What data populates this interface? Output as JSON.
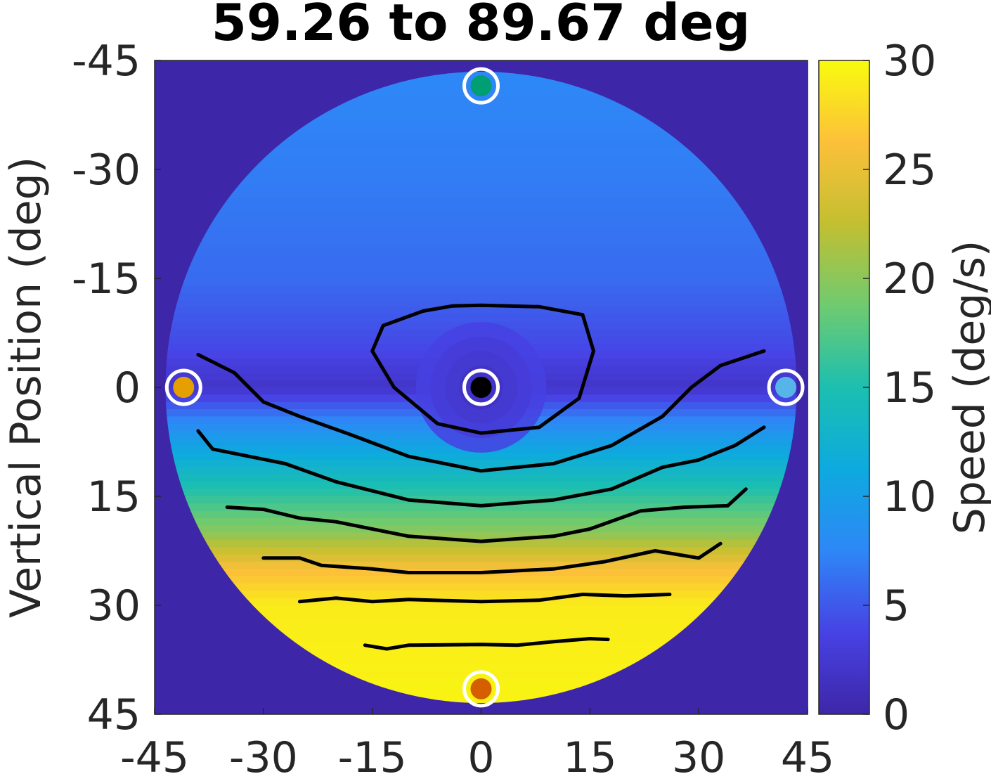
{
  "chart_data": {
    "type": "heatmap",
    "title": "59.26 to 89.67 deg",
    "xlabel": "",
    "ylabel": "Vertical Position (deg)",
    "colorbar_label": "Speed (deg/s)",
    "xlim": [
      -45,
      45
    ],
    "ylim": [
      45,
      -45
    ],
    "clim": [
      0,
      30
    ],
    "x_ticks": [
      "-45",
      "-30",
      "-15",
      "0",
      "15",
      "30",
      "45"
    ],
    "y_ticks": [
      "-45",
      "-30",
      "-15",
      "0",
      "15",
      "30",
      "45"
    ],
    "colorbar_ticks": [
      "0",
      "5",
      "10",
      "15",
      "20",
      "25",
      "30"
    ],
    "field_radius_deg": 43.5,
    "speed_field": {
      "vertical_deg": [
        -42,
        -30,
        -15,
        -5,
        0,
        5,
        10,
        15,
        20,
        25,
        30,
        42
      ],
      "speed_deg_s": [
        7.5,
        7.0,
        6.0,
        4.0,
        2.0,
        8.0,
        12.0,
        16.0,
        20.0,
        26.0,
        29.0,
        29.5
      ]
    },
    "contours": [
      {
        "level": 5,
        "points": [
          [
            -4,
            -11.2
          ],
          [
            0,
            -11.3
          ],
          [
            8,
            -11.1
          ],
          [
            14,
            -10
          ],
          [
            15.5,
            -5
          ],
          [
            13.5,
            1.5
          ],
          [
            8,
            5.5
          ],
          [
            0,
            6.3
          ],
          [
            -6,
            5
          ],
          [
            -12,
            0
          ],
          [
            -15,
            -5
          ],
          [
            -13.5,
            -8.5
          ],
          [
            -8,
            -10.5
          ],
          [
            -4,
            -11.2
          ]
        ]
      },
      {
        "level": 10,
        "points": [
          [
            -39,
            -4.5
          ],
          [
            -34,
            -2
          ],
          [
            -30,
            2
          ],
          [
            -25,
            4
          ],
          [
            -18,
            6.5
          ],
          [
            -10,
            9.5
          ],
          [
            0,
            11.5
          ],
          [
            10,
            10.5
          ],
          [
            18,
            8
          ],
          [
            25,
            4
          ],
          [
            29,
            0
          ],
          [
            33,
            -3
          ],
          [
            39,
            -5
          ]
        ]
      },
      {
        "level": 15,
        "points": [
          [
            -39,
            6
          ],
          [
            -37,
            8.5
          ],
          [
            -32,
            9.5
          ],
          [
            -27,
            10.5
          ],
          [
            -20,
            13
          ],
          [
            -10,
            15.5
          ],
          [
            0,
            16.3
          ],
          [
            10,
            15.5
          ],
          [
            18,
            14
          ],
          [
            25,
            11
          ],
          [
            30,
            10
          ],
          [
            35,
            8
          ],
          [
            39,
            5.5
          ]
        ]
      },
      {
        "level": 20,
        "points": [
          [
            -35,
            16.5
          ],
          [
            -30,
            16.8
          ],
          [
            -25,
            18
          ],
          [
            -20,
            18.5
          ],
          [
            -10,
            20.5
          ],
          [
            0,
            21.2
          ],
          [
            10,
            20.5
          ],
          [
            15,
            19.5
          ],
          [
            22,
            17
          ],
          [
            28,
            16.5
          ],
          [
            34,
            16.3
          ],
          [
            36.5,
            14
          ]
        ]
      },
      {
        "level": 25,
        "points": [
          [
            -30,
            23.5
          ],
          [
            -25,
            23.5
          ],
          [
            -22,
            24.5
          ],
          [
            -15,
            25
          ],
          [
            -10,
            25.5
          ],
          [
            0,
            25.5
          ],
          [
            10,
            25
          ],
          [
            17,
            24
          ],
          [
            24,
            22.5
          ],
          [
            30,
            23.5
          ],
          [
            33,
            21.5
          ]
        ]
      },
      {
        "level": 28,
        "points": [
          [
            -25,
            29.5
          ],
          [
            -20,
            29
          ],
          [
            -15,
            29.5
          ],
          [
            -10,
            29.2
          ],
          [
            0,
            29.5
          ],
          [
            8,
            29.3
          ],
          [
            14,
            28.5
          ],
          [
            20,
            28.7
          ],
          [
            26,
            28.5
          ]
        ]
      },
      {
        "level": 29,
        "points": [
          [
            -16,
            35.5
          ],
          [
            -13,
            36
          ],
          [
            -10,
            35.5
          ],
          [
            0,
            35.4
          ],
          [
            5,
            35.5
          ],
          [
            10,
            35
          ],
          [
            15,
            34.6
          ],
          [
            17.5,
            34.7
          ]
        ]
      }
    ],
    "markers": [
      {
        "x": 0,
        "y": -41.5,
        "color": "#009e73"
      },
      {
        "x": -41,
        "y": 0,
        "color": "#e69f00"
      },
      {
        "x": 0,
        "y": 0,
        "color": "#000000"
      },
      {
        "x": 42,
        "y": 0,
        "color": "#56b4e9"
      },
      {
        "x": 0,
        "y": 41.5,
        "color": "#d55e00"
      }
    ],
    "colors": {
      "background": "#3e26a8",
      "contour": "#000000",
      "marker_ring": "#ffffff"
    }
  }
}
